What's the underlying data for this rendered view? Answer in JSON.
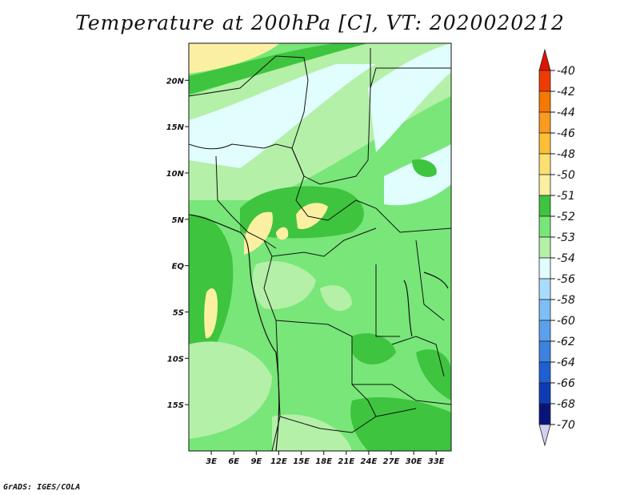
{
  "title": "Temperature at 200hPa [C], VT: 2020020212",
  "credit": "GrADS: IGES/COLA",
  "map": {
    "lon_range": [
      0,
      35
    ],
    "lat_range": [
      -20,
      24
    ],
    "lat_ticks": [
      {
        "lat": 20,
        "label": "20N"
      },
      {
        "lat": 15,
        "label": "15N"
      },
      {
        "lat": 10,
        "label": "10N"
      },
      {
        "lat": 5,
        "label": "5N"
      },
      {
        "lat": 0,
        "label": "EQ"
      },
      {
        "lat": -5,
        "label": "5S"
      },
      {
        "lat": -10,
        "label": "10S"
      },
      {
        "lat": -15,
        "label": "15S"
      }
    ],
    "lon_ticks": [
      {
        "lon": 3,
        "label": "3E"
      },
      {
        "lon": 6,
        "label": "6E"
      },
      {
        "lon": 9,
        "label": "9E"
      },
      {
        "lon": 12,
        "label": "12E"
      },
      {
        "lon": 15,
        "label": "15E"
      },
      {
        "lon": 18,
        "label": "18E"
      },
      {
        "lon": 21,
        "label": "21E"
      },
      {
        "lon": 24,
        "label": "24E"
      },
      {
        "lon": 27,
        "label": "27E"
      },
      {
        "lon": 30,
        "label": "30E"
      },
      {
        "lon": 33,
        "label": "33E"
      }
    ],
    "shading_colors": {
      "-51": "#fbf0a2",
      "-52": "#3ec43e",
      "-53": "#78e678",
      "-54": "#b4f0a8",
      "-56": "#e1fdfd"
    }
  },
  "colorbar": {
    "labels": [
      "-40",
      "-42",
      "-44",
      "-46",
      "-48",
      "-50",
      "-51",
      "-52",
      "-53",
      "-54",
      "-56",
      "-58",
      "-60",
      "-62",
      "-64",
      "-66",
      "-68",
      "-70"
    ],
    "colors": [
      "#e01400",
      "#ee3c00",
      "#f57800",
      "#fa9a1e",
      "#fdbf37",
      "#fddf72",
      "#fbf0a2",
      "#3ec43e",
      "#78e678",
      "#b4f0a8",
      "#e1fdfd",
      "#aadcff",
      "#7dbef5",
      "#5aa0eb",
      "#3c82e1",
      "#1e60d2",
      "#0f3cb4",
      "#0a1478",
      "#d2d2f0"
    ]
  }
}
